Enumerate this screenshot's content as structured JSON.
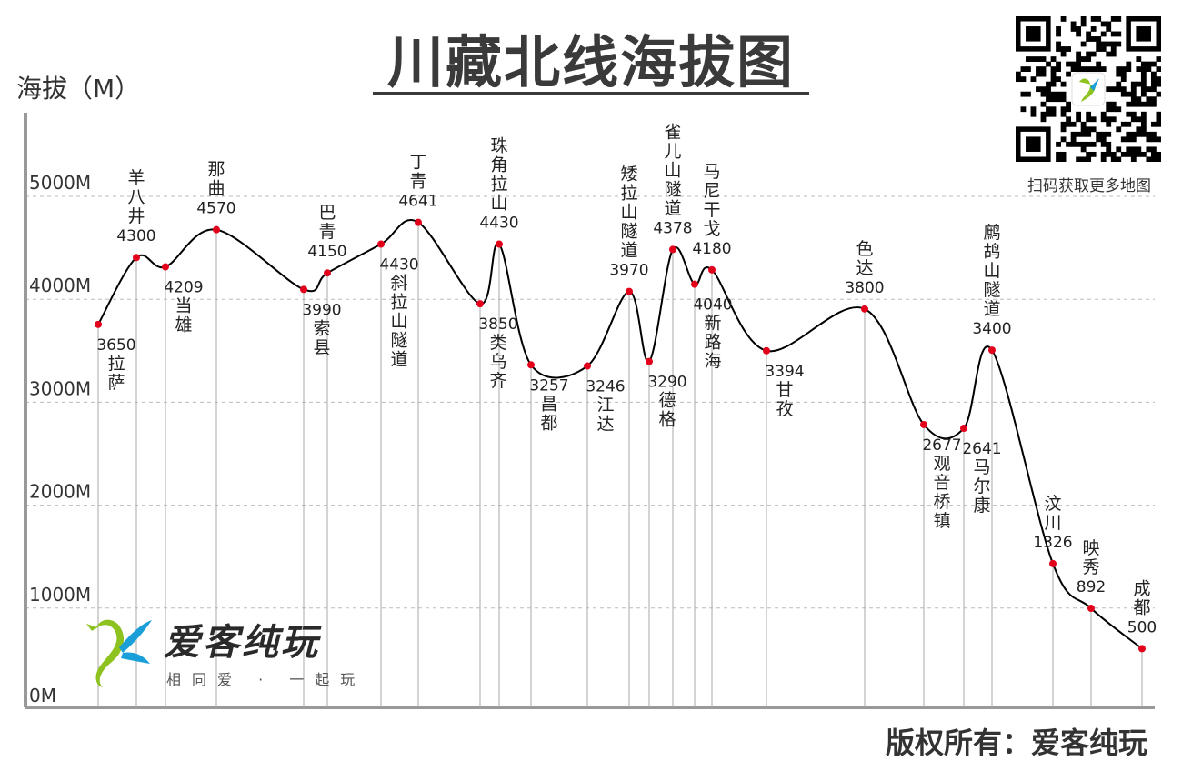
{
  "header": {
    "title": "川藏北线海拔图",
    "y_axis_label": "海拔（M）",
    "qr_caption": "扫码获取更多地图",
    "copyright": "版权所有：爱客纯玩"
  },
  "brand": {
    "name": "爱客纯玩",
    "slogan": "相同爱 · 一起玩"
  },
  "colors": {
    "line": "#000000",
    "point": "#e3001b",
    "grid": "#bbbbbb",
    "axis": "#999999",
    "brand_green": "#8dc21f",
    "brand_blue": "#1a9fd9"
  },
  "chart_data": {
    "type": "line",
    "title": "川藏北线海拔图",
    "ylabel": "海拔（M）",
    "ylim": [
      0,
      5000
    ],
    "y_ticks": [
      {
        "value": 0,
        "label": "0M"
      },
      {
        "value": 1000,
        "label": "1000M"
      },
      {
        "value": 2000,
        "label": "2000M"
      },
      {
        "value": 3000,
        "label": "3000M"
      },
      {
        "value": 4000,
        "label": "4000M"
      },
      {
        "value": 5000,
        "label": "5000M"
      }
    ],
    "grid": "horizontal dashed",
    "points": [
      {
        "name": "拉萨",
        "elevation": 3650,
        "value_label": "3650"
      },
      {
        "name": "羊八井",
        "elevation": 4300,
        "value_label": "4300"
      },
      {
        "name": "当雄",
        "elevation": 4209,
        "value_label": "4209"
      },
      {
        "name": "那曲",
        "elevation": 4570,
        "value_label": "4570"
      },
      {
        "name": "索县",
        "elevation": 3990,
        "value_label": "3990"
      },
      {
        "name": "巴青",
        "elevation": 4150,
        "value_label": "4150"
      },
      {
        "name": "斜拉山隧道",
        "elevation": 4430,
        "value_label": "4430"
      },
      {
        "name": "丁青",
        "elevation": 4641,
        "value_label": "4641"
      },
      {
        "name": "类乌齐",
        "elevation": 3850,
        "value_label": "3850"
      },
      {
        "name": "珠角拉山",
        "elevation": 4430,
        "value_label": "4430"
      },
      {
        "name": "昌都",
        "elevation": 3257,
        "value_label": "3257"
      },
      {
        "name": "江达",
        "elevation": 3246,
        "value_label": "3246"
      },
      {
        "name": "矮拉山隧道",
        "elevation": 3970,
        "value_label": "3970"
      },
      {
        "name": "德格",
        "elevation": 3290,
        "value_label": "3290"
      },
      {
        "name": "雀儿山隧道",
        "elevation": 4378,
        "value_label": "4378"
      },
      {
        "name": "新路海",
        "elevation": 4040,
        "value_label": "4040"
      },
      {
        "name": "马尼干戈",
        "elevation": 4180,
        "value_label": "4180"
      },
      {
        "name": "甘孜",
        "elevation": 3394,
        "value_label": "3394"
      },
      {
        "name": "色达",
        "elevation": 3800,
        "value_label": "3800"
      },
      {
        "name": "观音桥镇",
        "elevation": 2677,
        "value_label": "2677"
      },
      {
        "name": "马尔康",
        "elevation": 2641,
        "value_label": "2641"
      },
      {
        "name": "鹧鸪山隧道",
        "elevation": 3400,
        "value_label": "3400"
      },
      {
        "name": "汶川",
        "elevation": 1326,
        "value_label": "1326"
      },
      {
        "name": "映秀",
        "elevation": 892,
        "value_label": "892"
      },
      {
        "name": "成都",
        "elevation": 500,
        "value_label": "500"
      }
    ]
  }
}
